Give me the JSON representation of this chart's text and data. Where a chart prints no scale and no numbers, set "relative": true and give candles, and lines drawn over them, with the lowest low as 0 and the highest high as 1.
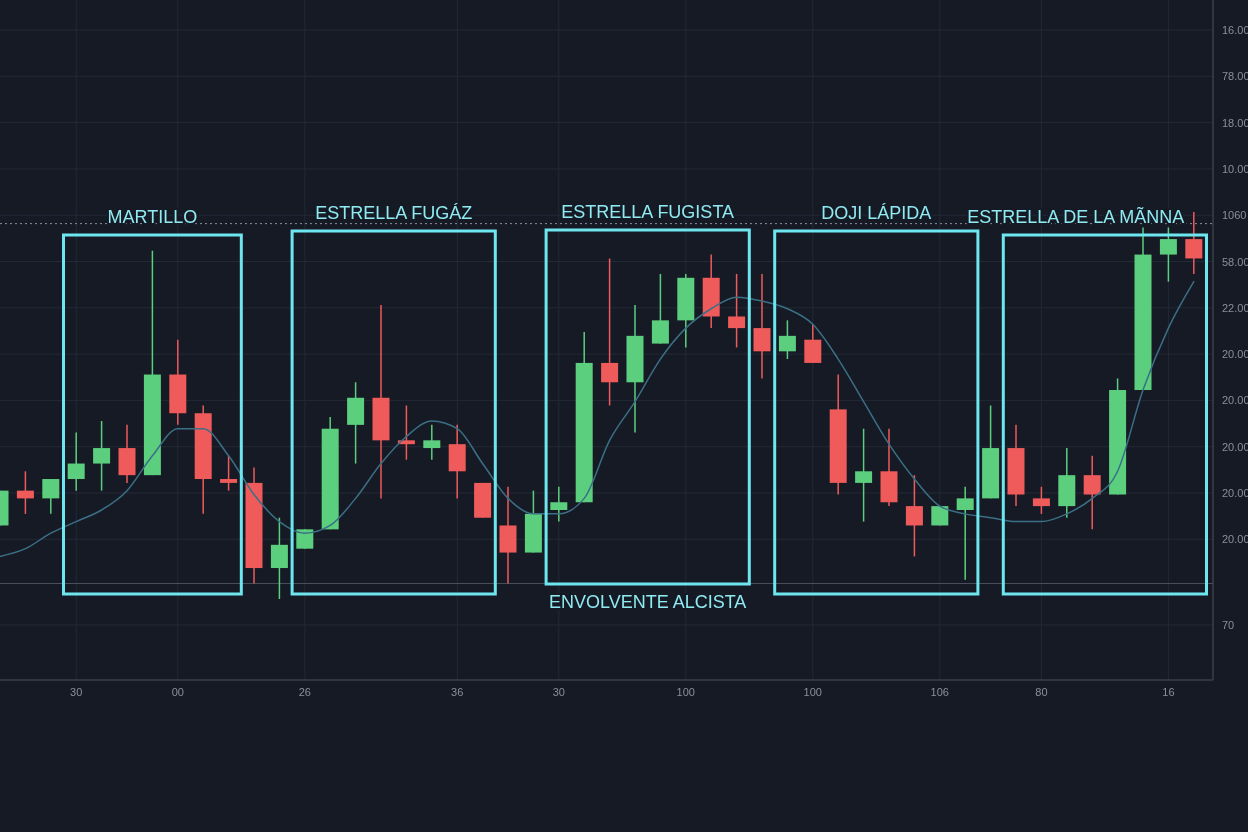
{
  "chart_data": {
    "type": "candlestick",
    "relative": true,
    "grid": true,
    "categories": [
      null,
      null,
      null,
      "30",
      null,
      null,
      null,
      "00",
      null,
      null,
      null,
      null,
      "26",
      null,
      null,
      null,
      null,
      null,
      "36",
      null,
      null,
      null,
      "30",
      null,
      null,
      null,
      null,
      "100",
      null,
      null,
      null,
      null,
      "100",
      null,
      null,
      null,
      null,
      "106",
      null,
      null,
      null,
      "80",
      null,
      null,
      null,
      null,
      "16",
      null
    ],
    "annotations": [
      "MARTILLO",
      "ESTRELLA FUGÁZ",
      "ESTRELLA FUGISTA",
      "ENVOLVENTE ALCISTA",
      "DOJI LÁPIDA",
      "ESTRELLA DE LA MÃNNA",
      "16.00",
      "78.00",
      "18.00",
      "10.00",
      "1060",
      "58.00",
      "22.00",
      "20.00",
      "20.00",
      "20.00",
      "20.00",
      "20.00",
      "70"
    ],
    "ref_lines": [
      {
        "axis": "y",
        "value": 0.97,
        "color": "#8a8f9a",
        "line_style": "dotted"
      },
      {
        "axis": "y",
        "value": 0.04,
        "color": "#4a505c",
        "line_style": "solid"
      }
    ],
    "series": [
      {
        "type": "line",
        "color": "#3b6f86",
        "values": [
          0.11,
          0.13,
          0.17,
          0.2,
          0.23,
          0.28,
          0.37,
          0.44,
          0.44,
          0.37,
          0.27,
          0.2,
          0.17,
          0.19,
          0.26,
          0.35,
          0.42,
          0.46,
          0.44,
          0.35,
          0.26,
          0.22,
          0.22,
          0.26,
          0.41,
          0.51,
          0.62,
          0.7,
          0.75,
          0.78,
          0.77,
          0.75,
          0.71,
          0.62,
          0.51,
          0.4,
          0.31,
          0.24,
          0.22,
          0.21,
          0.2,
          0.2,
          0.22,
          0.26,
          0.33,
          0.54,
          0.7,
          0.82
        ]
      },
      {
        "type": "candlestick",
        "ohlc": [
          [
            0.19,
            0.28,
            0.19,
            0.28
          ],
          [
            0.28,
            0.33,
            0.22,
            0.26
          ],
          [
            0.26,
            0.31,
            0.22,
            0.31
          ],
          [
            0.31,
            0.43,
            0.28,
            0.35
          ],
          [
            0.35,
            0.46,
            0.28,
            0.39
          ],
          [
            0.39,
            0.45,
            0.3,
            0.32
          ],
          [
            0.32,
            0.9,
            0.32,
            0.58
          ],
          [
            0.58,
            0.67,
            0.45,
            0.48
          ],
          [
            0.48,
            0.5,
            0.22,
            0.31
          ],
          [
            0.31,
            0.37,
            0.28,
            0.3
          ],
          [
            0.3,
            0.34,
            0.04,
            0.08
          ],
          [
            0.08,
            0.21,
            0,
            0.14
          ],
          [
            0.13,
            0.18,
            0.13,
            0.18
          ],
          [
            0.18,
            0.47,
            0.18,
            0.44
          ],
          [
            0.45,
            0.56,
            0.35,
            0.52
          ],
          [
            0.52,
            0.76,
            0.26,
            0.41
          ],
          [
            0.41,
            0.5,
            0.36,
            0.4
          ],
          [
            0.39,
            0.45,
            0.36,
            0.41
          ],
          [
            0.4,
            0.45,
            0.26,
            0.33
          ],
          [
            0.3,
            0.3,
            0.21,
            0.21
          ],
          [
            0.19,
            0.29,
            0.04,
            0.12
          ],
          [
            0.12,
            0.28,
            0.12,
            0.22
          ],
          [
            0.23,
            0.29,
            0.2,
            0.25
          ],
          [
            0.25,
            0.69,
            0.25,
            0.61
          ],
          [
            0.61,
            0.88,
            0.5,
            0.56
          ],
          [
            0.56,
            0.76,
            0.43,
            0.68
          ],
          [
            0.66,
            0.84,
            0.66,
            0.72
          ],
          [
            0.72,
            0.84,
            0.65,
            0.83
          ],
          [
            0.83,
            0.89,
            0.7,
            0.73
          ],
          [
            0.73,
            0.84,
            0.65,
            0.7
          ],
          [
            0.7,
            0.84,
            0.57,
            0.64
          ],
          [
            0.64,
            0.72,
            0.62,
            0.68
          ],
          [
            0.67,
            0.71,
            0.61,
            0.61
          ],
          [
            0.49,
            0.58,
            0.27,
            0.3
          ],
          [
            0.3,
            0.44,
            0.2,
            0.33
          ],
          [
            0.33,
            0.44,
            0.24,
            0.25
          ],
          [
            0.24,
            0.32,
            0.11,
            0.19
          ],
          [
            0.19,
            0.24,
            0.19,
            0.24
          ],
          [
            0.23,
            0.29,
            0.05,
            0.26
          ],
          [
            0.26,
            0.5,
            0.26,
            0.39
          ],
          [
            0.39,
            0.45,
            0.24,
            0.27
          ],
          [
            0.26,
            0.29,
            0.22,
            0.24
          ],
          [
            0.24,
            0.39,
            0.21,
            0.32
          ],
          [
            0.32,
            0.37,
            0.18,
            0.27
          ],
          [
            0.27,
            0.57,
            0.27,
            0.54
          ],
          [
            0.54,
            0.96,
            0.54,
            0.89
          ],
          [
            0.89,
            0.96,
            0.82,
            0.93
          ],
          [
            0.93,
            1,
            0.84,
            0.88
          ]
        ],
        "colors": [
          "#5ccf7f",
          "#ef5b5b",
          "#5ccf7f",
          "#5ccf7f",
          "#5ccf7f",
          "#ef5b5b",
          "#5ccf7f",
          "#ef5b5b",
          "#ef5b5b",
          "#ef5b5b",
          "#ef5b5b",
          "#5ccf7f",
          "#5ccf7f",
          "#5ccf7f",
          "#5ccf7f",
          "#ef5b5b",
          "#ef5b5b",
          "#5ccf7f",
          "#ef5b5b",
          "#ef5b5b",
          "#ef5b5b",
          "#5ccf7f",
          "#5ccf7f",
          "#5ccf7f",
          "#ef5b5b",
          "#5ccf7f",
          "#5ccf7f",
          "#5ccf7f",
          "#ef5b5b",
          "#ef5b5b",
          "#ef5b5b",
          "#5ccf7f",
          "#ef5b5b",
          "#ef5b5b",
          "#5ccf7f",
          "#ef5b5b",
          "#ef5b5b",
          "#5ccf7f",
          "#5ccf7f",
          "#5ccf7f",
          "#ef5b5b",
          "#ef5b5b",
          "#5ccf7f",
          "#ef5b5b",
          "#5ccf7f",
          "#5ccf7f",
          "#5ccf7f",
          "#ef5b5b"
        ]
      }
    ]
  }
}
